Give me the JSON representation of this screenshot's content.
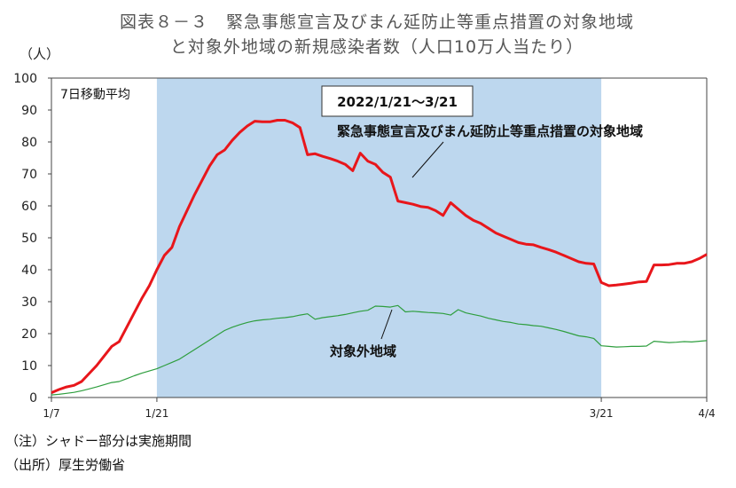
{
  "title_line1": "図表８－３　緊急事態宣言及びまん延防止等重点措置の対象地域",
  "title_line2": "と対象外地域の新規感染者数（人口10万人当たり）",
  "unit_label": "（人）",
  "notes": {
    "note1": "（注）シャドー部分は実施期間",
    "note2": "（出所）厚生労働省"
  },
  "colors": {
    "shade": "#bdd7ee",
    "target_line": "#e8161b",
    "other_line": "#2e9e3e",
    "axis": "#444444"
  },
  "chart_data": {
    "type": "line",
    "title": "図表８－３　緊急事態宣言及びまん延防止等重点措置の対象地域と対象外地域の新規感染者数（人口10万人当たり）",
    "ylabel": "（人）",
    "ylim": [
      0,
      100
    ],
    "yticks": [
      0,
      10,
      20,
      30,
      40,
      50,
      60,
      70,
      80,
      90,
      100
    ],
    "x_tick_labels": [
      {
        "day": 0,
        "label": "1/7"
      },
      {
        "day": 14,
        "label": "1/21"
      },
      {
        "day": 73,
        "label": "3/21"
      },
      {
        "day": 87,
        "label": "4/4"
      }
    ],
    "x_start": "1/7",
    "x_end": "4/4",
    "grid": false,
    "shaded_period": {
      "start_day": 14,
      "end_day": 73,
      "label": "2022/1/21～3/21"
    },
    "series_note": "7日移動平均",
    "series": [
      {
        "name": "緊急事態宣言及びまん延防止等重点措置の対象地域",
        "color": "#e8161b",
        "points": [
          [
            0,
            1.5
          ],
          [
            1,
            2.5
          ],
          [
            2,
            3.3
          ],
          [
            3,
            3.8
          ],
          [
            4,
            5.0
          ],
          [
            5,
            7.5
          ],
          [
            6,
            10.0
          ],
          [
            7,
            13.0
          ],
          [
            8,
            16.0
          ],
          [
            9,
            17.5
          ],
          [
            10,
            22.0
          ],
          [
            11,
            26.5
          ],
          [
            12,
            31.0
          ],
          [
            13,
            35.0
          ],
          [
            14,
            40.0
          ],
          [
            15,
            44.5
          ],
          [
            16,
            47.0
          ],
          [
            17,
            53.5
          ],
          [
            18,
            58.5
          ],
          [
            19,
            63.5
          ],
          [
            20,
            68.0
          ],
          [
            21,
            72.5
          ],
          [
            22,
            76.0
          ],
          [
            23,
            77.5
          ],
          [
            24,
            80.5
          ],
          [
            25,
            83.0
          ],
          [
            26,
            85.0
          ],
          [
            27,
            86.5
          ],
          [
            28,
            86.3
          ],
          [
            29,
            86.3
          ],
          [
            30,
            86.8
          ],
          [
            31,
            86.8
          ],
          [
            32,
            86.0
          ],
          [
            33,
            84.5
          ],
          [
            34,
            76.0
          ],
          [
            35,
            76.3
          ],
          [
            36,
            75.5
          ],
          [
            37,
            74.8
          ],
          [
            38,
            74.0
          ],
          [
            39,
            73.0
          ],
          [
            40,
            71.0
          ],
          [
            41,
            76.5
          ],
          [
            42,
            74.0
          ],
          [
            43,
            73.0
          ],
          [
            44,
            70.5
          ],
          [
            45,
            69.0
          ],
          [
            46,
            61.5
          ],
          [
            47,
            61.0
          ],
          [
            48,
            60.5
          ],
          [
            49,
            59.8
          ],
          [
            50,
            59.5
          ],
          [
            51,
            58.5
          ],
          [
            52,
            57.0
          ],
          [
            53,
            61.0
          ],
          [
            54,
            59.0
          ],
          [
            55,
            57.0
          ],
          [
            56,
            55.5
          ],
          [
            57,
            54.5
          ],
          [
            58,
            53.0
          ],
          [
            59,
            51.5
          ],
          [
            60,
            50.5
          ],
          [
            61,
            49.5
          ],
          [
            62,
            48.5
          ],
          [
            63,
            48.0
          ],
          [
            64,
            47.8
          ],
          [
            65,
            47.0
          ],
          [
            66,
            46.3
          ],
          [
            67,
            45.5
          ],
          [
            68,
            44.5
          ],
          [
            69,
            43.5
          ],
          [
            70,
            42.5
          ],
          [
            71,
            42.0
          ],
          [
            72,
            41.8
          ],
          [
            73,
            36.0
          ],
          [
            74,
            35.0
          ],
          [
            75,
            35.2
          ],
          [
            76,
            35.5
          ],
          [
            77,
            35.8
          ],
          [
            78,
            36.2
          ],
          [
            79,
            36.3
          ],
          [
            80,
            41.5
          ],
          [
            81,
            41.5
          ],
          [
            82,
            41.6
          ],
          [
            83,
            42.0
          ],
          [
            84,
            42.0
          ],
          [
            85,
            42.5
          ],
          [
            86,
            43.5
          ],
          [
            87,
            44.8
          ]
        ]
      },
      {
        "name": "対象外地域",
        "color": "#2e9e3e",
        "points": [
          [
            0,
            0.8
          ],
          [
            1,
            1.0
          ],
          [
            2,
            1.3
          ],
          [
            3,
            1.6
          ],
          [
            4,
            2.1
          ],
          [
            5,
            2.7
          ],
          [
            6,
            3.3
          ],
          [
            7,
            4.0
          ],
          [
            8,
            4.7
          ],
          [
            9,
            5.0
          ],
          [
            10,
            5.9
          ],
          [
            11,
            6.8
          ],
          [
            12,
            7.6
          ],
          [
            13,
            8.3
          ],
          [
            14,
            9.0
          ],
          [
            15,
            10.0
          ],
          [
            16,
            11.0
          ],
          [
            17,
            12.0
          ],
          [
            18,
            13.5
          ],
          [
            19,
            15.0
          ],
          [
            20,
            16.5
          ],
          [
            21,
            18.0
          ],
          [
            22,
            19.5
          ],
          [
            23,
            21.0
          ],
          [
            24,
            22.0
          ],
          [
            25,
            22.8
          ],
          [
            26,
            23.5
          ],
          [
            27,
            24.0
          ],
          [
            28,
            24.3
          ],
          [
            29,
            24.5
          ],
          [
            30,
            24.8
          ],
          [
            31,
            25.0
          ],
          [
            32,
            25.3
          ],
          [
            33,
            25.8
          ],
          [
            34,
            26.2
          ],
          [
            35,
            24.5
          ],
          [
            36,
            25.0
          ],
          [
            37,
            25.3
          ],
          [
            38,
            25.6
          ],
          [
            39,
            26.0
          ],
          [
            40,
            26.5
          ],
          [
            41,
            27.0
          ],
          [
            42,
            27.3
          ],
          [
            43,
            28.6
          ],
          [
            44,
            28.5
          ],
          [
            45,
            28.3
          ],
          [
            46,
            28.8
          ],
          [
            47,
            26.8
          ],
          [
            48,
            27.0
          ],
          [
            49,
            26.8
          ],
          [
            50,
            26.6
          ],
          [
            51,
            26.5
          ],
          [
            52,
            26.3
          ],
          [
            53,
            25.8
          ],
          [
            54,
            27.5
          ],
          [
            55,
            26.5
          ],
          [
            56,
            26.0
          ],
          [
            57,
            25.5
          ],
          [
            58,
            24.8
          ],
          [
            59,
            24.3
          ],
          [
            60,
            23.8
          ],
          [
            61,
            23.5
          ],
          [
            62,
            23.0
          ],
          [
            63,
            22.8
          ],
          [
            64,
            22.5
          ],
          [
            65,
            22.3
          ],
          [
            66,
            21.8
          ],
          [
            67,
            21.3
          ],
          [
            68,
            20.7
          ],
          [
            69,
            20.0
          ],
          [
            70,
            19.3
          ],
          [
            71,
            19.0
          ],
          [
            72,
            18.5
          ],
          [
            73,
            16.2
          ],
          [
            74,
            16.0
          ],
          [
            75,
            15.8
          ],
          [
            76,
            15.9
          ],
          [
            77,
            16.0
          ],
          [
            78,
            16.0
          ],
          [
            79,
            16.1
          ],
          [
            80,
            17.6
          ],
          [
            81,
            17.4
          ],
          [
            82,
            17.2
          ],
          [
            83,
            17.3
          ],
          [
            84,
            17.5
          ],
          [
            85,
            17.4
          ],
          [
            86,
            17.6
          ],
          [
            87,
            17.8
          ]
        ]
      }
    ],
    "annotations": [
      {
        "text": "緊急事態宣言及びまん延防止等重点措置の対象地域",
        "target": "red"
      },
      {
        "text": "対象外地域",
        "target": "green"
      }
    ]
  }
}
